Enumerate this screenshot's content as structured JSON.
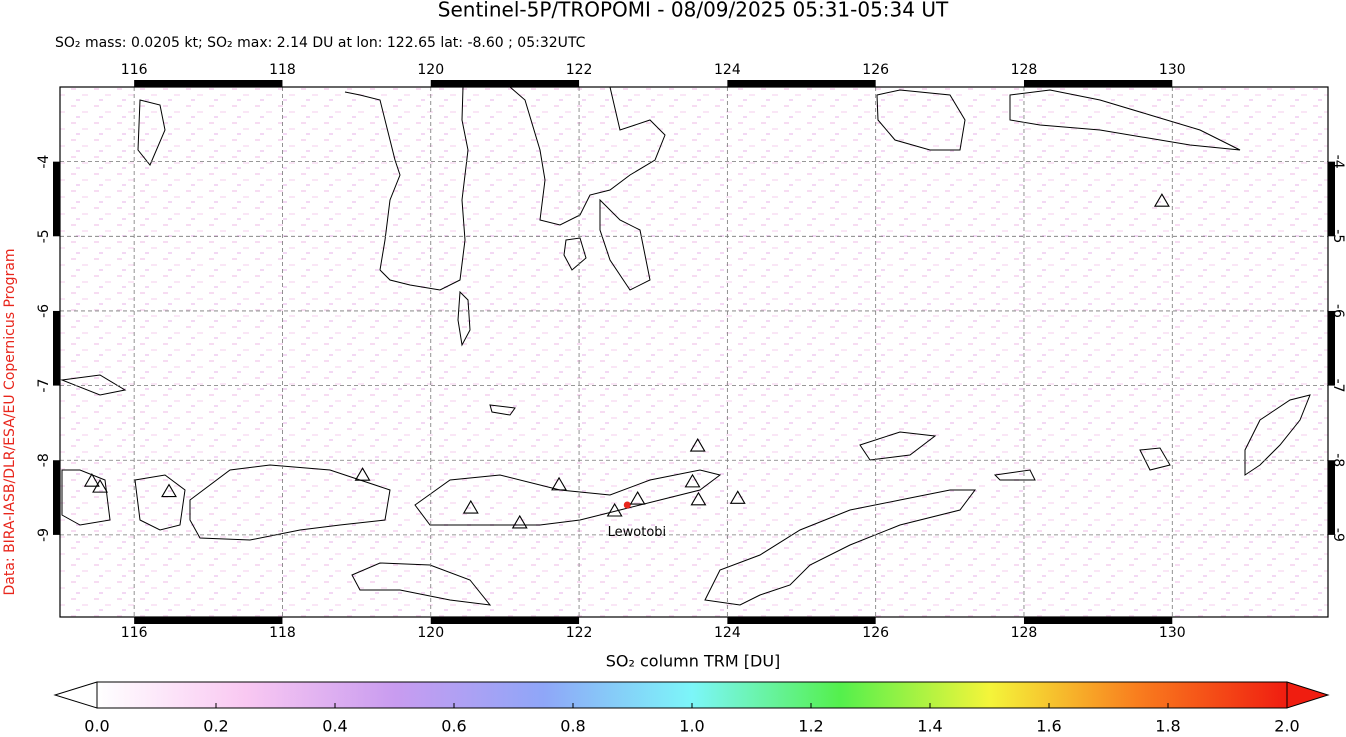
{
  "chart_data": {
    "type": "map",
    "title": "Sentinel-5P/TROPOMI - 08/09/2025 05:31-05:34 UT",
    "subtitle": "SO₂ mass: 0.0205 kt; SO₂ max: 2.14 DU at lon: 122.65 lat: -8.60 ; 05:32UTC",
    "credit": "Data: BIRA-IASB/DLR/ESA/EU Copernicus Program",
    "xlim": [
      115,
      132.1
    ],
    "ylim": [
      -10.1,
      -3
    ],
    "xticks": [
      116,
      118,
      120,
      122,
      124,
      126,
      128,
      130
    ],
    "yticks": [
      -4,
      -5,
      -6,
      -7,
      -8,
      -9
    ],
    "grid": true,
    "volcanoes": {
      "lon": [
        115.43,
        115.54,
        116.47,
        119.08,
        120.54,
        121.2,
        121.73,
        122.48,
        122.79,
        123.6,
        123.53,
        123.61,
        124.14,
        129.86
      ],
      "lat": [
        -8.28,
        -8.36,
        -8.42,
        -8.2,
        -8.64,
        -8.84,
        -8.33,
        -8.68,
        -8.52,
        -7.81,
        -8.29,
        -8.53,
        -8.51,
        -4.53
      ]
    },
    "annotation": {
      "text": "Lewotobi",
      "lon": 122.78,
      "lat": -8.97
    },
    "max_point": {
      "lon": 122.65,
      "lat": -8.6,
      "color": "#e8261c"
    },
    "colorbar": {
      "label": "SO₂ column TRM [DU]",
      "lim": [
        0,
        2
      ],
      "colors": [
        "#ffffff",
        "#f9c8f2",
        "#c99cf0",
        "#8fa6f8",
        "#7cf6f9",
        "#54f04c",
        "#f4f53a",
        "#f97d1e",
        "#f01d10"
      ],
      "ticks": [
        {
          "value": 0,
          "label": "0.0"
        },
        {
          "value": 0.2,
          "label": "0.2"
        },
        {
          "value": 0.4,
          "label": "0.4"
        },
        {
          "value": 0.6,
          "label": "0.6"
        },
        {
          "value": 0.8,
          "label": "0.8"
        },
        {
          "value": 1.0,
          "label": "1.0"
        },
        {
          "value": 1.2,
          "label": "1.2"
        },
        {
          "value": 1.4,
          "label": "1.4"
        },
        {
          "value": 1.6,
          "label": "1.6"
        },
        {
          "value": 1.8,
          "label": "1.8"
        },
        {
          "value": 2.0,
          "label": "2.0"
        }
      ]
    }
  }
}
